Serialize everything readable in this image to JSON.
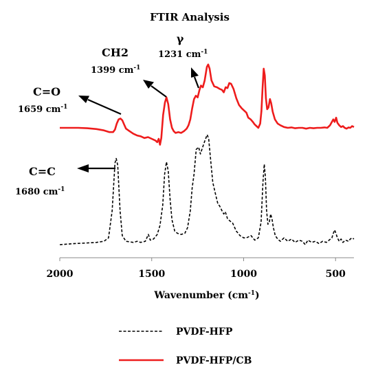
{
  "chart_data": {
    "type": "line",
    "title": "FTIR Analysis",
    "xlabel": "Wavenumber (cm-1)",
    "xlabel_parts": {
      "main": "Wavenumber (cm",
      "sup": "-1",
      "close": ")"
    },
    "ylabel": "",
    "xlim": [
      2000,
      400
    ],
    "x_reversed": true,
    "x_ticks": [
      {
        "value": 2000,
        "label": "2000"
      },
      {
        "value": 1500,
        "label": "1500"
      },
      {
        "value": 1000,
        "label": "1000"
      },
      {
        "value": 500,
        "label": "500"
      }
    ],
    "y_axis_visible": false,
    "grid": false,
    "legend_position": "bottom",
    "series": [
      {
        "name": "PVDF-HFP",
        "color": "#000000",
        "style": "dashed",
        "points": [
          [
            2000,
            0.0
          ],
          [
            1920,
            0.01
          ],
          [
            1850,
            0.015
          ],
          [
            1800,
            0.02
          ],
          [
            1760,
            0.03
          ],
          [
            1735,
            0.06
          ],
          [
            1715,
            0.3
          ],
          [
            1700,
            0.72
          ],
          [
            1693,
            0.76
          ],
          [
            1685,
            0.7
          ],
          [
            1672,
            0.3
          ],
          [
            1660,
            0.08
          ],
          [
            1640,
            0.03
          ],
          [
            1600,
            0.02
          ],
          [
            1580,
            0.03
          ],
          [
            1560,
            0.02
          ],
          [
            1535,
            0.03
          ],
          [
            1518,
            0.09
          ],
          [
            1508,
            0.04
          ],
          [
            1490,
            0.05
          ],
          [
            1470,
            0.09
          ],
          [
            1455,
            0.17
          ],
          [
            1440,
            0.35
          ],
          [
            1430,
            0.62
          ],
          [
            1420,
            0.73
          ],
          [
            1410,
            0.65
          ],
          [
            1400,
            0.4
          ],
          [
            1390,
            0.22
          ],
          [
            1375,
            0.12
          ],
          [
            1360,
            0.1
          ],
          [
            1340,
            0.09
          ],
          [
            1320,
            0.1
          ],
          [
            1305,
            0.15
          ],
          [
            1290,
            0.3
          ],
          [
            1280,
            0.5
          ],
          [
            1270,
            0.62
          ],
          [
            1258,
            0.84
          ],
          [
            1245,
            0.86
          ],
          [
            1235,
            0.8
          ],
          [
            1225,
            0.85
          ],
          [
            1210,
            0.92
          ],
          [
            1198,
            0.97
          ],
          [
            1190,
            0.93
          ],
          [
            1178,
            0.72
          ],
          [
            1168,
            0.55
          ],
          [
            1155,
            0.46
          ],
          [
            1140,
            0.36
          ],
          [
            1130,
            0.34
          ],
          [
            1118,
            0.3
          ],
          [
            1108,
            0.27
          ],
          [
            1100,
            0.29
          ],
          [
            1088,
            0.23
          ],
          [
            1075,
            0.21
          ],
          [
            1060,
            0.19
          ],
          [
            1040,
            0.12
          ],
          [
            1020,
            0.08
          ],
          [
            1000,
            0.06
          ],
          [
            985,
            0.06
          ],
          [
            960,
            0.08
          ],
          [
            940,
            0.04
          ],
          [
            920,
            0.06
          ],
          [
            905,
            0.2
          ],
          [
            895,
            0.55
          ],
          [
            888,
            0.71
          ],
          [
            882,
            0.6
          ],
          [
            875,
            0.3
          ],
          [
            868,
            0.18
          ],
          [
            860,
            0.2
          ],
          [
            853,
            0.27
          ],
          [
            846,
            0.23
          ],
          [
            838,
            0.15
          ],
          [
            828,
            0.08
          ],
          [
            815,
            0.05
          ],
          [
            800,
            0.03
          ],
          [
            780,
            0.06
          ],
          [
            760,
            0.03
          ],
          [
            740,
            0.05
          ],
          [
            720,
            0.02
          ],
          [
            700,
            0.04
          ],
          [
            680,
            0.03
          ],
          [
            665,
            0.0
          ],
          [
            650,
            0.04
          ],
          [
            630,
            0.02
          ],
          [
            610,
            0.03
          ],
          [
            590,
            0.01
          ],
          [
            570,
            0.03
          ],
          [
            550,
            0.02
          ],
          [
            535,
            0.04
          ],
          [
            520,
            0.06
          ],
          [
            512,
            0.1
          ],
          [
            505,
            0.13
          ],
          [
            498,
            0.1
          ],
          [
            490,
            0.06
          ],
          [
            480,
            0.03
          ],
          [
            470,
            0.05
          ],
          [
            460,
            0.02
          ],
          [
            445,
            0.04
          ],
          [
            430,
            0.03
          ],
          [
            420,
            0.05
          ],
          [
            410,
            0.06
          ],
          [
            400,
            0.05
          ]
        ]
      },
      {
        "name": "PVDF-HFP/CB",
        "color": "#ee1c1c",
        "style": "solid",
        "points": [
          [
            2000,
            0.0
          ],
          [
            1950,
            0.0
          ],
          [
            1900,
            0.0
          ],
          [
            1850,
            -0.005
          ],
          [
            1800,
            -0.015
          ],
          [
            1760,
            -0.03
          ],
          [
            1730,
            -0.05
          ],
          [
            1710,
            -0.05
          ],
          [
            1700,
            -0.02
          ],
          [
            1690,
            0.05
          ],
          [
            1680,
            0.1
          ],
          [
            1670,
            0.11
          ],
          [
            1660,
            0.09
          ],
          [
            1650,
            0.04
          ],
          [
            1640,
            -0.01
          ],
          [
            1620,
            -0.04
          ],
          [
            1600,
            -0.07
          ],
          [
            1580,
            -0.09
          ],
          [
            1560,
            -0.1
          ],
          [
            1540,
            -0.12
          ],
          [
            1520,
            -0.11
          ],
          [
            1500,
            -0.13
          ],
          [
            1480,
            -0.15
          ],
          [
            1470,
            -0.17
          ],
          [
            1462,
            -0.13
          ],
          [
            1455,
            -0.2
          ],
          [
            1448,
            -0.12
          ],
          [
            1438,
            0.15
          ],
          [
            1428,
            0.3
          ],
          [
            1420,
            0.36
          ],
          [
            1410,
            0.28
          ],
          [
            1400,
            0.1
          ],
          [
            1390,
            0.0
          ],
          [
            1380,
            -0.04
          ],
          [
            1370,
            -0.06
          ],
          [
            1355,
            -0.05
          ],
          [
            1340,
            -0.06
          ],
          [
            1325,
            -0.04
          ],
          [
            1310,
            -0.01
          ],
          [
            1300,
            0.03
          ],
          [
            1290,
            0.1
          ],
          [
            1280,
            0.23
          ],
          [
            1270,
            0.34
          ],
          [
            1260,
            0.38
          ],
          [
            1250,
            0.36
          ],
          [
            1240,
            0.45
          ],
          [
            1232,
            0.5
          ],
          [
            1222,
            0.48
          ],
          [
            1212,
            0.56
          ],
          [
            1200,
            0.72
          ],
          [
            1193,
            0.75
          ],
          [
            1185,
            0.7
          ],
          [
            1175,
            0.56
          ],
          [
            1160,
            0.49
          ],
          [
            1145,
            0.48
          ],
          [
            1130,
            0.46
          ],
          [
            1118,
            0.45
          ],
          [
            1108,
            0.42
          ],
          [
            1098,
            0.48
          ],
          [
            1088,
            0.47
          ],
          [
            1078,
            0.53
          ],
          [
            1068,
            0.52
          ],
          [
            1055,
            0.46
          ],
          [
            1040,
            0.35
          ],
          [
            1025,
            0.27
          ],
          [
            1010,
            0.23
          ],
          [
            995,
            0.2
          ],
          [
            985,
            0.18
          ],
          [
            975,
            0.12
          ],
          [
            962,
            0.1
          ],
          [
            950,
            0.07
          ],
          [
            940,
            0.04
          ],
          [
            930,
            0.02
          ],
          [
            920,
            0.0
          ],
          [
            910,
            0.05
          ],
          [
            903,
            0.2
          ],
          [
            897,
            0.48
          ],
          [
            891,
            0.7
          ],
          [
            885,
            0.62
          ],
          [
            879,
            0.35
          ],
          [
            872,
            0.22
          ],
          [
            865,
            0.24
          ],
          [
            857,
            0.34
          ],
          [
            850,
            0.29
          ],
          [
            842,
            0.19
          ],
          [
            830,
            0.1
          ],
          [
            815,
            0.05
          ],
          [
            800,
            0.03
          ],
          [
            780,
            0.01
          ],
          [
            760,
            0.0
          ],
          [
            740,
            0.005
          ],
          [
            720,
            -0.005
          ],
          [
            700,
            0.0
          ],
          [
            680,
            0.0
          ],
          [
            660,
            -0.01
          ],
          [
            640,
            0.0
          ],
          [
            620,
            -0.005
          ],
          [
            600,
            0.0
          ],
          [
            580,
            0.0
          ],
          [
            560,
            0.005
          ],
          [
            545,
            0.0
          ],
          [
            530,
            0.03
          ],
          [
            520,
            0.07
          ],
          [
            512,
            0.1
          ],
          [
            505,
            0.07
          ],
          [
            497,
            0.12
          ],
          [
            490,
            0.06
          ],
          [
            480,
            0.03
          ],
          [
            470,
            0.01
          ],
          [
            460,
            0.02
          ],
          [
            450,
            0.0
          ],
          [
            440,
            -0.01
          ],
          [
            430,
            0.005
          ],
          [
            420,
            0.0
          ],
          [
            410,
            0.02
          ],
          [
            400,
            0.01
          ]
        ]
      }
    ],
    "annotations": [
      {
        "label": "C=O",
        "value": "1659 cm",
        "sup": "-1"
      },
      {
        "label": "CH2",
        "value": "1399 cm",
        "sup": "-1"
      },
      {
        "label": "γ",
        "value": "1231 cm",
        "sup": "-1"
      },
      {
        "label": "C=C",
        "value": "1680 cm",
        "sup": "-1"
      }
    ]
  }
}
